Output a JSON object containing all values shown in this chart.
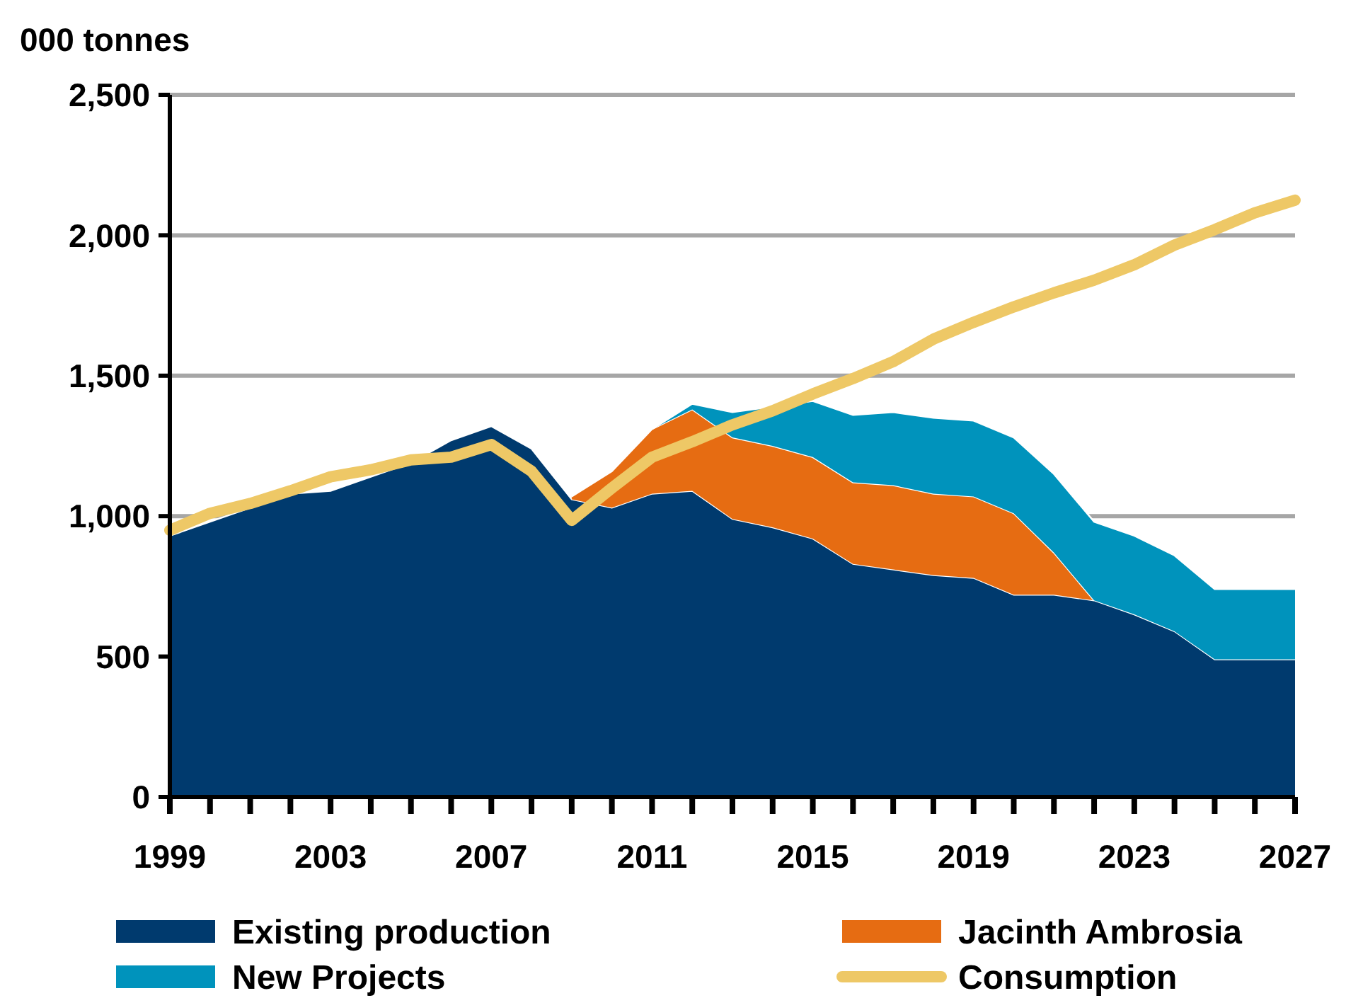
{
  "chart_data": {
    "type": "area",
    "stacked": true,
    "ylabel": "000 tonnes",
    "x": [
      1999,
      2000,
      2001,
      2002,
      2003,
      2004,
      2005,
      2006,
      2007,
      2008,
      2009,
      2010,
      2011,
      2012,
      2013,
      2014,
      2015,
      2016,
      2017,
      2018,
      2019,
      2020,
      2021,
      2022,
      2023,
      2024,
      2025,
      2026,
      2027
    ],
    "series": [
      {
        "name": "Existing production",
        "color": "#003a6e",
        "values": [
          930,
          980,
          1030,
          1080,
          1090,
          1140,
          1190,
          1270,
          1320,
          1240,
          1060,
          1030,
          1080,
          1090,
          990,
          960,
          920,
          830,
          810,
          790,
          780,
          720,
          720,
          700,
          650,
          590,
          490,
          490,
          490
        ]
      },
      {
        "name": "Jacinth Ambrosia",
        "color": "#e66c12",
        "values": [
          null,
          null,
          null,
          null,
          null,
          null,
          null,
          null,
          null,
          null,
          10,
          130,
          230,
          290,
          290,
          290,
          290,
          290,
          300,
          290,
          290,
          290,
          150,
          0,
          null,
          null,
          null,
          null,
          null
        ]
      },
      {
        "name": "New Projects",
        "color": "#0093bc",
        "values": [
          null,
          null,
          null,
          null,
          null,
          null,
          null,
          null,
          null,
          null,
          null,
          null,
          0,
          20,
          90,
          140,
          200,
          240,
          260,
          270,
          270,
          270,
          280,
          280,
          280,
          270,
          250,
          250,
          250
        ]
      },
      {
        "name": "Consumption",
        "type": "line",
        "color": "#eec866",
        "values": [
          950,
          1010,
          1045,
          1090,
          1140,
          1165,
          1200,
          1210,
          1255,
          1160,
          985,
          1100,
          1210,
          1265,
          1325,
          1375,
          1435,
          1490,
          1550,
          1630,
          1690,
          1745,
          1795,
          1840,
          1895,
          1965,
          2020,
          2080,
          2125
        ]
      }
    ],
    "xlim": [
      1999,
      2027
    ],
    "xticks": [
      1999,
      {
        "value": 2000,
        "label": null
      },
      {
        "value": 2001,
        "label": null
      },
      {
        "value": 2002,
        "label": null
      },
      2003,
      {
        "value": 2004,
        "label": null
      },
      {
        "value": 2005,
        "label": null
      },
      {
        "value": 2006,
        "label": null
      },
      2007,
      {
        "value": 2008,
        "label": null
      },
      {
        "value": 2009,
        "label": null
      },
      {
        "value": 2010,
        "label": null
      },
      2011,
      {
        "value": 2012,
        "label": null
      },
      {
        "value": 2013,
        "label": null
      },
      {
        "value": 2014,
        "label": null
      },
      2015,
      {
        "value": 2016,
        "label": null
      },
      {
        "value": 2017,
        "label": null
      },
      {
        "value": 2018,
        "label": null
      },
      2019,
      {
        "value": 2020,
        "label": null
      },
      {
        "value": 2021,
        "label": null
      },
      {
        "value": 2022,
        "label": null
      },
      2023,
      {
        "value": 2024,
        "label": null
      },
      {
        "value": 2025,
        "label": null
      },
      {
        "value": 2026,
        "label": null
      },
      2027
    ],
    "ylim": [
      0,
      2500
    ],
    "yticks": [
      0,
      {
        "value": 500,
        "label": "500"
      },
      {
        "value": 1000,
        "label": "1,000"
      },
      {
        "value": 1500,
        "label": "1,500"
      },
      {
        "value": 2000,
        "label": "2,000"
      },
      {
        "value": 2500,
        "label": "2,500"
      }
    ],
    "grid": "y",
    "legend": "bottom"
  }
}
